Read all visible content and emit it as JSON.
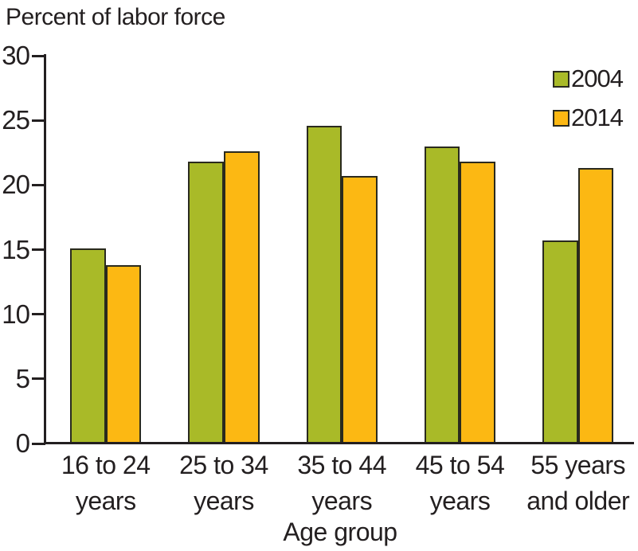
{
  "chart_data": {
    "type": "bar",
    "title": "",
    "ylabel": "Percent of labor force",
    "xlabel": "Age group",
    "categories": [
      "16 to 24\nyears",
      "25 to 34\nyears",
      "35 to 44\nyears",
      "45 to 54\nyears",
      "55 years\nand older"
    ],
    "series": [
      {
        "name": "2004",
        "color": "#a9ba28",
        "values": [
          15.1,
          21.8,
          24.6,
          23.0,
          15.7
        ]
      },
      {
        "name": "2014",
        "color": "#fcb813",
        "values": [
          13.8,
          22.6,
          20.7,
          21.8,
          21.3
        ]
      }
    ],
    "yticks": [
      0,
      5,
      10,
      15,
      20,
      25,
      30
    ],
    "ylim": [
      0,
      30
    ],
    "grid": false,
    "legend_position": "top-right",
    "bar_border_color": "#2a2a1e",
    "axis_color": "#231f20",
    "text_color": "#231f20"
  }
}
